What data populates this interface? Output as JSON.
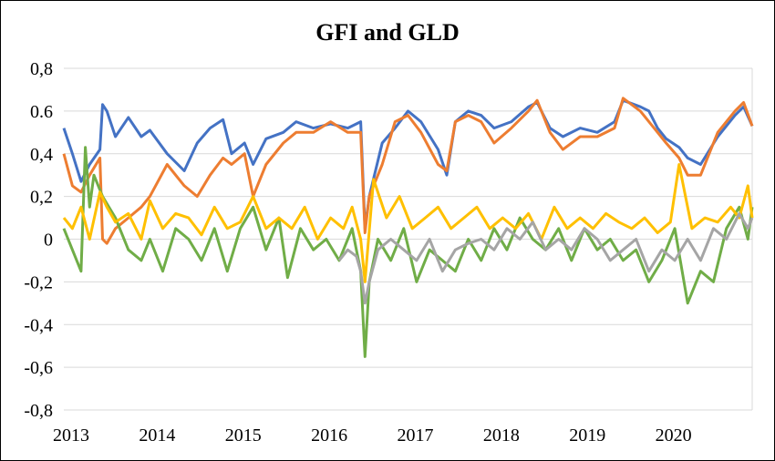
{
  "chart_data": {
    "type": "line",
    "title": "GFI and GLD",
    "xlabel": "",
    "ylabel": "",
    "xlim": [
      2013,
      2021
    ],
    "ylim": [
      -0.8,
      0.8
    ],
    "x_ticks": [
      2013,
      2014,
      2015,
      2016,
      2017,
      2018,
      2019,
      2020
    ],
    "x_tick_labels": [
      "2013",
      "2014",
      "2015",
      "2016",
      "2017",
      "2018",
      "2019",
      "2020"
    ],
    "y_ticks": [
      -0.8,
      -0.6,
      -0.4,
      -0.2,
      0,
      0.2,
      0.4,
      0.6,
      0.8
    ],
    "y_tick_labels": [
      "-0,8",
      "-0,6",
      "-0,4",
      "-0,2",
      "0",
      "0,2",
      "0,4",
      "0.6",
      "0,8"
    ],
    "grid": "horizontal",
    "legend": "none",
    "colors": {
      "series1": "#4472C4",
      "series2": "#ED7D31",
      "series3": "#70AD47",
      "series4": "#FFC000",
      "series5": "#A5A5A5",
      "grid": "#d9d9d9"
    },
    "series": [
      {
        "color": "#4472C4",
        "x": [
          2013.0,
          2013.1,
          2013.2,
          2013.3,
          2013.42,
          2013.45,
          2013.5,
          2013.6,
          2013.75,
          2013.9,
          2014.0,
          2014.2,
          2014.4,
          2014.55,
          2014.7,
          2014.85,
          2014.95,
          2015.1,
          2015.2,
          2015.35,
          2015.55,
          2015.7,
          2015.9,
          2016.1,
          2016.3,
          2016.45,
          2016.5,
          2016.55,
          2016.7,
          2016.85,
          2017.0,
          2017.15,
          2017.35,
          2017.45,
          2017.55,
          2017.7,
          2017.85,
          2018.0,
          2018.2,
          2018.4,
          2018.5,
          2018.65,
          2018.8,
          2019.0,
          2019.2,
          2019.4,
          2019.5,
          2019.7,
          2019.8,
          2019.9,
          2020.0,
          2020.15,
          2020.25,
          2020.4,
          2020.6,
          2020.8,
          2020.9,
          2021.0
        ],
        "y": [
          0.52,
          0.4,
          0.27,
          0.35,
          0.42,
          0.63,
          0.6,
          0.48,
          0.57,
          0.48,
          0.51,
          0.4,
          0.32,
          0.45,
          0.52,
          0.56,
          0.4,
          0.45,
          0.35,
          0.47,
          0.5,
          0.55,
          0.52,
          0.54,
          0.52,
          0.55,
          0.05,
          0.2,
          0.45,
          0.52,
          0.6,
          0.55,
          0.42,
          0.3,
          0.55,
          0.6,
          0.58,
          0.52,
          0.55,
          0.62,
          0.64,
          0.52,
          0.48,
          0.52,
          0.5,
          0.55,
          0.65,
          0.62,
          0.6,
          0.52,
          0.47,
          0.43,
          0.38,
          0.35,
          0.48,
          0.58,
          0.62,
          0.53
        ]
      },
      {
        "color": "#ED7D31",
        "x": [
          2013.0,
          2013.1,
          2013.2,
          2013.3,
          2013.42,
          2013.45,
          2013.5,
          2013.6,
          2013.75,
          2013.9,
          2014.0,
          2014.2,
          2014.4,
          2014.55,
          2014.7,
          2014.85,
          2014.95,
          2015.1,
          2015.2,
          2015.35,
          2015.55,
          2015.7,
          2015.9,
          2016.1,
          2016.3,
          2016.45,
          2016.5,
          2016.55,
          2016.7,
          2016.85,
          2017.0,
          2017.15,
          2017.35,
          2017.45,
          2017.55,
          2017.7,
          2017.85,
          2018.0,
          2018.2,
          2018.4,
          2018.5,
          2018.65,
          2018.8,
          2019.0,
          2019.2,
          2019.4,
          2019.5,
          2019.7,
          2019.8,
          2019.9,
          2020.0,
          2020.15,
          2020.25,
          2020.4,
          2020.6,
          2020.8,
          2020.9,
          2021.0
        ],
        "y": [
          0.4,
          0.25,
          0.22,
          0.3,
          0.38,
          0.0,
          -0.02,
          0.05,
          0.1,
          0.15,
          0.2,
          0.35,
          0.25,
          0.2,
          0.3,
          0.38,
          0.35,
          0.4,
          0.2,
          0.35,
          0.45,
          0.5,
          0.5,
          0.55,
          0.5,
          0.5,
          0.03,
          0.2,
          0.35,
          0.55,
          0.58,
          0.5,
          0.35,
          0.32,
          0.55,
          0.58,
          0.55,
          0.45,
          0.52,
          0.6,
          0.65,
          0.5,
          0.42,
          0.48,
          0.48,
          0.52,
          0.66,
          0.6,
          0.55,
          0.5,
          0.45,
          0.38,
          0.3,
          0.3,
          0.5,
          0.6,
          0.64,
          0.53
        ]
      },
      {
        "color": "#70AD47",
        "x": [
          2013.0,
          2013.1,
          2013.2,
          2013.25,
          2013.3,
          2013.35,
          2013.45,
          2013.6,
          2013.75,
          2013.9,
          2014.0,
          2014.15,
          2014.3,
          2014.45,
          2014.6,
          2014.75,
          2014.9,
          2015.05,
          2015.2,
          2015.35,
          2015.5,
          2015.6,
          2015.75,
          2015.9,
          2016.05,
          2016.2,
          2016.35,
          2016.45,
          2016.5,
          2016.55,
          2016.65,
          2016.8,
          2016.95,
          2017.1,
          2017.25,
          2017.4,
          2017.55,
          2017.7,
          2017.85,
          2018.0,
          2018.15,
          2018.3,
          2018.45,
          2018.6,
          2018.75,
          2018.9,
          2019.05,
          2019.2,
          2019.35,
          2019.5,
          2019.65,
          2019.8,
          2019.95,
          2020.1,
          2020.25,
          2020.4,
          2020.55,
          2020.7,
          2020.85,
          2020.95,
          2021.0
        ],
        "y": [
          0.05,
          -0.05,
          -0.15,
          0.43,
          0.15,
          0.3,
          0.2,
          0.1,
          -0.05,
          -0.1,
          0.0,
          -0.15,
          0.05,
          0.0,
          -0.1,
          0.05,
          -0.15,
          0.05,
          0.15,
          -0.05,
          0.1,
          -0.18,
          0.05,
          -0.05,
          0.0,
          -0.1,
          0.05,
          -0.15,
          -0.55,
          -0.2,
          0.0,
          -0.1,
          0.05,
          -0.2,
          -0.05,
          -0.1,
          -0.15,
          0.0,
          -0.1,
          0.05,
          -0.05,
          0.1,
          0.0,
          -0.05,
          0.05,
          -0.1,
          0.05,
          -0.05,
          0.0,
          -0.1,
          -0.05,
          -0.2,
          -0.1,
          0.05,
          -0.3,
          -0.15,
          -0.2,
          0.05,
          0.15,
          0.0,
          0.15
        ]
      },
      {
        "color": "#FFC000",
        "x": [
          2013.0,
          2013.1,
          2013.2,
          2013.3,
          2013.42,
          2013.5,
          2013.6,
          2013.75,
          2013.9,
          2014.0,
          2014.15,
          2014.3,
          2014.45,
          2014.6,
          2014.75,
          2014.9,
          2015.05,
          2015.2,
          2015.35,
          2015.5,
          2015.65,
          2015.8,
          2015.95,
          2016.1,
          2016.25,
          2016.35,
          2016.45,
          2016.5,
          2016.6,
          2016.75,
          2016.9,
          2017.05,
          2017.2,
          2017.35,
          2017.5,
          2017.65,
          2017.8,
          2017.95,
          2018.1,
          2018.25,
          2018.4,
          2018.55,
          2018.7,
          2018.85,
          2019.0,
          2019.15,
          2019.3,
          2019.45,
          2019.6,
          2019.75,
          2019.9,
          2020.05,
          2020.15,
          2020.3,
          2020.45,
          2020.6,
          2020.75,
          2020.85,
          2020.95,
          2021.0
        ],
        "y": [
          0.1,
          0.05,
          0.15,
          0.0,
          0.22,
          0.15,
          0.08,
          0.12,
          0.0,
          0.18,
          0.05,
          0.12,
          0.1,
          0.02,
          0.15,
          0.05,
          0.08,
          0.2,
          0.05,
          0.1,
          0.05,
          0.15,
          0.0,
          0.1,
          0.05,
          0.15,
          0.0,
          -0.2,
          0.28,
          0.1,
          0.2,
          0.05,
          0.1,
          0.15,
          0.05,
          0.1,
          0.15,
          0.05,
          0.1,
          0.05,
          0.12,
          0.0,
          0.15,
          0.05,
          0.1,
          0.05,
          0.12,
          0.08,
          0.05,
          0.1,
          0.03,
          0.08,
          0.35,
          0.05,
          0.1,
          0.08,
          0.15,
          0.1,
          0.25,
          0.1
        ]
      },
      {
        "color": "#A5A5A5",
        "x": [
          2016.2,
          2016.3,
          2016.4,
          2016.45,
          2016.5,
          2016.55,
          2016.65,
          2016.8,
          2016.95,
          2017.1,
          2017.25,
          2017.4,
          2017.55,
          2017.7,
          2017.85,
          2018.0,
          2018.15,
          2018.3,
          2018.45,
          2018.6,
          2018.75,
          2018.9,
          2019.05,
          2019.2,
          2019.35,
          2019.5,
          2019.65,
          2019.8,
          2019.95,
          2020.1,
          2020.25,
          2020.4,
          2020.55,
          2020.7,
          2020.85,
          2020.95,
          2021.0
        ],
        "y": [
          -0.1,
          -0.05,
          -0.08,
          -0.15,
          -0.3,
          -0.2,
          -0.05,
          0.0,
          -0.05,
          -0.1,
          0.0,
          -0.15,
          -0.05,
          -0.02,
          0.0,
          -0.05,
          0.05,
          0.0,
          0.08,
          -0.05,
          0.0,
          -0.05,
          0.05,
          0.0,
          -0.1,
          -0.05,
          0.0,
          -0.15,
          -0.05,
          -0.1,
          0.0,
          -0.1,
          0.05,
          0.0,
          0.12,
          0.05,
          0.1
        ]
      }
    ]
  }
}
